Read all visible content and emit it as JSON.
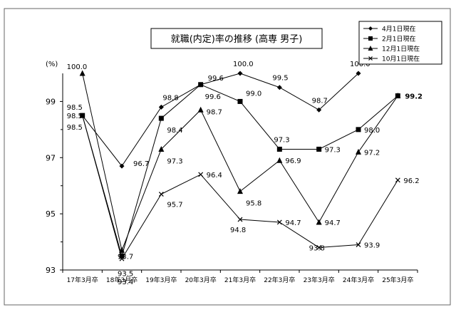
{
  "chart_data": {
    "type": "line",
    "title": "就職(内定)率の推移 (高専 男子)",
    "ylabel": "(%)",
    "ylim": [
      93,
      100
    ],
    "yticks": [
      93,
      95,
      97,
      99
    ],
    "grid": false,
    "legend_position": "top-right",
    "categories": [
      "17年3月卒",
      "18年3月卒",
      "19年3月卒",
      "20年3月卒",
      "21年3月卒",
      "22年3月卒",
      "23年3月卒",
      "24年3月卒",
      "25年3月卒"
    ],
    "series": [
      {
        "name": "4月1日現在",
        "marker": "diamond",
        "values": [
          98.5,
          96.7,
          98.8,
          99.6,
          100.0,
          99.5,
          98.7,
          100.0,
          null
        ],
        "labels": [
          "98.5",
          "96.7",
          "98.8",
          "99.6",
          "100.0",
          "99.5",
          "98.7",
          "100.0",
          ""
        ]
      },
      {
        "name": "2月1日現在",
        "marker": "square",
        "values": [
          98.5,
          93.5,
          98.4,
          99.6,
          99.0,
          97.3,
          97.3,
          98.0,
          99.2
        ],
        "labels": [
          "98.5",
          "93.5",
          "98.4",
          "99.6",
          "99.0",
          "97.3",
          "97.3",
          "98.0",
          "99.2"
        ]
      },
      {
        "name": "12月1日現在",
        "marker": "triangle",
        "values": [
          100.0,
          93.7,
          97.3,
          98.7,
          95.8,
          96.9,
          94.7,
          97.2,
          99.2
        ],
        "labels": [
          "100.0",
          "93.7",
          "97.3",
          "98.7",
          "95.8",
          "96.9",
          "94.7",
          "97.2",
          ""
        ]
      },
      {
        "name": "10月1日現在",
        "marker": "x",
        "values": [
          98.5,
          93.4,
          95.7,
          96.4,
          94.8,
          94.7,
          93.8,
          93.9,
          96.2
        ],
        "labels": [
          "98.5",
          "93.4",
          "95.7",
          "96.4",
          "94.8",
          "94.7",
          "93.8",
          "93.9",
          "96.2"
        ]
      }
    ]
  }
}
